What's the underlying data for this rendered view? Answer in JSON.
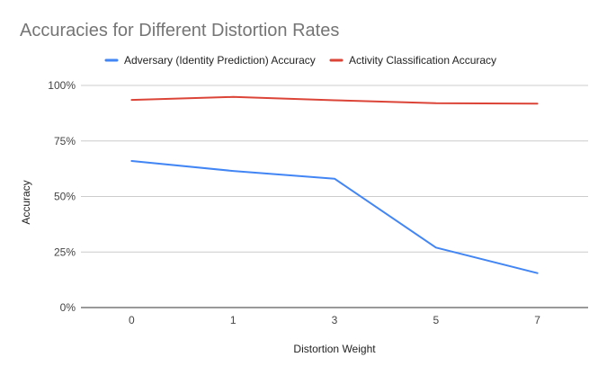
{
  "chart_data": {
    "type": "line",
    "title": "Accuracies for Different Distortion Rates",
    "xlabel": "Distortion Weight",
    "ylabel": "Accuracy",
    "categories": [
      "0",
      "1",
      "3",
      "5",
      "7"
    ],
    "series": [
      {
        "name": "Adversary (Identity Prediction) Accuracy",
        "color": "#4285f4",
        "values": [
          0.66,
          0.615,
          0.58,
          0.27,
          0.155
        ]
      },
      {
        "name": "Activity Classification Accuracy",
        "color": "#db4437",
        "values": [
          0.935,
          0.948,
          0.933,
          0.92,
          0.918
        ]
      }
    ],
    "ylim": [
      0,
      1
    ],
    "yticks": [
      {
        "value": 0,
        "label": "0%"
      },
      {
        "value": 0.25,
        "label": "25%"
      },
      {
        "value": 0.5,
        "label": "50%"
      },
      {
        "value": 0.75,
        "label": "75%"
      },
      {
        "value": 1,
        "label": "100%"
      }
    ],
    "grid": true,
    "legend_position": "top"
  }
}
